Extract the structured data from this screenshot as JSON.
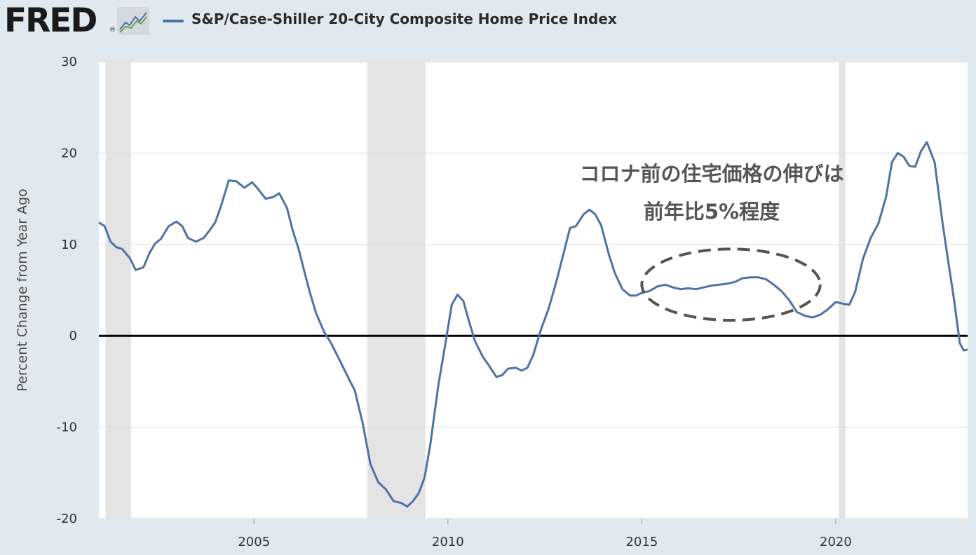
{
  "header": {
    "logo": "FRED",
    "logo_mark": "®",
    "series_label": "S&P/Case-Shiller 20-City Composite Home Price Index"
  },
  "colors": {
    "series": "#4e72a7",
    "recession": "#e4e4e4",
    "background": "#e1e9f0",
    "plot": "#ffffff",
    "zero_line": "#000000",
    "annotation": "#555555"
  },
  "icons": [
    "fred-logo-graph-icon"
  ],
  "chart_data": {
    "type": "line",
    "title": "",
    "xlabel": "",
    "ylabel": "Percent Change from Year Ago",
    "xlim": [
      2001.0,
      2023.4
    ],
    "ylim": [
      -20,
      30
    ],
    "y_ticks": [
      30,
      20,
      10,
      0,
      -10,
      -20
    ],
    "y_tick_labels": [
      "30",
      "20",
      "10",
      "0",
      "-10",
      "-20"
    ],
    "x_ticks": [
      2005,
      2010,
      2015,
      2020
    ],
    "x_tick_labels": [
      "2005",
      "2010",
      "2015",
      "2020"
    ],
    "grid": "horizontal",
    "legend": "top-left",
    "recessions": [
      [
        2001.17,
        2001.83
      ],
      [
        2007.92,
        2009.42
      ],
      [
        2020.08,
        2020.25
      ]
    ],
    "zero_line": 0,
    "annotations": {
      "text_line1": "コロナ前の住宅価格の伸びは",
      "text_line2": "前年比5%程度",
      "ellipse_center": [
        2017.3,
        5.6
      ],
      "ellipse_radius": [
        2.3,
        3.9
      ]
    },
    "series": [
      {
        "name": "S&P/Case-Shiller 20-City Composite Home Price Index",
        "x": [
          2001.0,
          2001.15,
          2001.3,
          2001.45,
          2001.6,
          2001.8,
          2001.95,
          2002.15,
          2002.3,
          2002.45,
          2002.6,
          2002.8,
          2003.0,
          2003.15,
          2003.3,
          2003.5,
          2003.7,
          2003.85,
          2004.0,
          2004.15,
          2004.35,
          2004.55,
          2004.75,
          2004.95,
          2005.1,
          2005.3,
          2005.5,
          2005.65,
          2005.85,
          2006.0,
          2006.15,
          2006.3,
          2006.45,
          2006.6,
          2006.8,
          2007.0,
          2007.2,
          2007.4,
          2007.6,
          2007.8,
          2008.0,
          2008.2,
          2008.4,
          2008.6,
          2008.8,
          2008.95,
          2009.1,
          2009.25,
          2009.4,
          2009.55,
          2009.75,
          2009.95,
          2010.1,
          2010.25,
          2010.4,
          2010.55,
          2010.7,
          2010.9,
          2011.05,
          2011.25,
          2011.4,
          2011.55,
          2011.75,
          2011.9,
          2012.05,
          2012.2,
          2012.4,
          2012.6,
          2012.8,
          2013.0,
          2013.15,
          2013.3,
          2013.5,
          2013.65,
          2013.8,
          2013.95,
          2014.15,
          2014.3,
          2014.5,
          2014.7,
          2014.85,
          2015.0,
          2015.2,
          2015.4,
          2015.6,
          2015.8,
          2016.0,
          2016.2,
          2016.4,
          2016.6,
          2016.8,
          2017.0,
          2017.2,
          2017.4,
          2017.6,
          2017.8,
          2018.0,
          2018.2,
          2018.4,
          2018.6,
          2018.8,
          2019.0,
          2019.2,
          2019.4,
          2019.6,
          2019.8,
          2020.0,
          2020.2,
          2020.35,
          2020.5,
          2020.7,
          2020.9,
          2021.1,
          2021.3,
          2021.45,
          2021.6,
          2021.75,
          2021.9,
          2022.05,
          2022.2,
          2022.35,
          2022.55,
          2022.75,
          2022.9,
          2023.05,
          2023.2,
          2023.3,
          2023.4
        ],
        "values": [
          12.4,
          12.0,
          10.3,
          9.7,
          9.5,
          8.5,
          7.2,
          7.5,
          9.0,
          10.1,
          10.6,
          12.0,
          12.5,
          12.0,
          10.7,
          10.3,
          10.7,
          11.5,
          12.4,
          14.2,
          17.0,
          16.9,
          16.2,
          16.8,
          16.1,
          15.0,
          15.2,
          15.6,
          14.0,
          11.5,
          9.5,
          7.0,
          4.6,
          2.5,
          0.5,
          -0.9,
          -2.6,
          -4.3,
          -6.0,
          -9.5,
          -14.0,
          -16.0,
          -16.8,
          -18.1,
          -18.3,
          -18.7,
          -18.1,
          -17.2,
          -15.5,
          -11.8,
          -5.5,
          -0.5,
          3.4,
          4.5,
          3.8,
          1.5,
          -0.6,
          -2.3,
          -3.2,
          -4.5,
          -4.3,
          -3.6,
          -3.5,
          -3.8,
          -3.5,
          -2.1,
          0.7,
          3.0,
          6.0,
          9.3,
          11.8,
          12.0,
          13.3,
          13.8,
          13.3,
          12.1,
          8.9,
          6.9,
          5.1,
          4.4,
          4.4,
          4.7,
          4.9,
          5.4,
          5.6,
          5.3,
          5.1,
          5.2,
          5.1,
          5.3,
          5.5,
          5.6,
          5.7,
          5.9,
          6.3,
          6.4,
          6.4,
          6.2,
          5.6,
          4.9,
          3.9,
          2.6,
          2.2,
          2.0,
          2.3,
          2.9,
          3.7,
          3.5,
          3.4,
          4.8,
          8.4,
          10.7,
          12.3,
          15.2,
          19.0,
          20.0,
          19.6,
          18.6,
          18.5,
          20.2,
          21.2,
          19.0,
          12.5,
          8.2,
          4.0,
          -0.8,
          -1.6,
          -1.5
        ]
      }
    ]
  }
}
